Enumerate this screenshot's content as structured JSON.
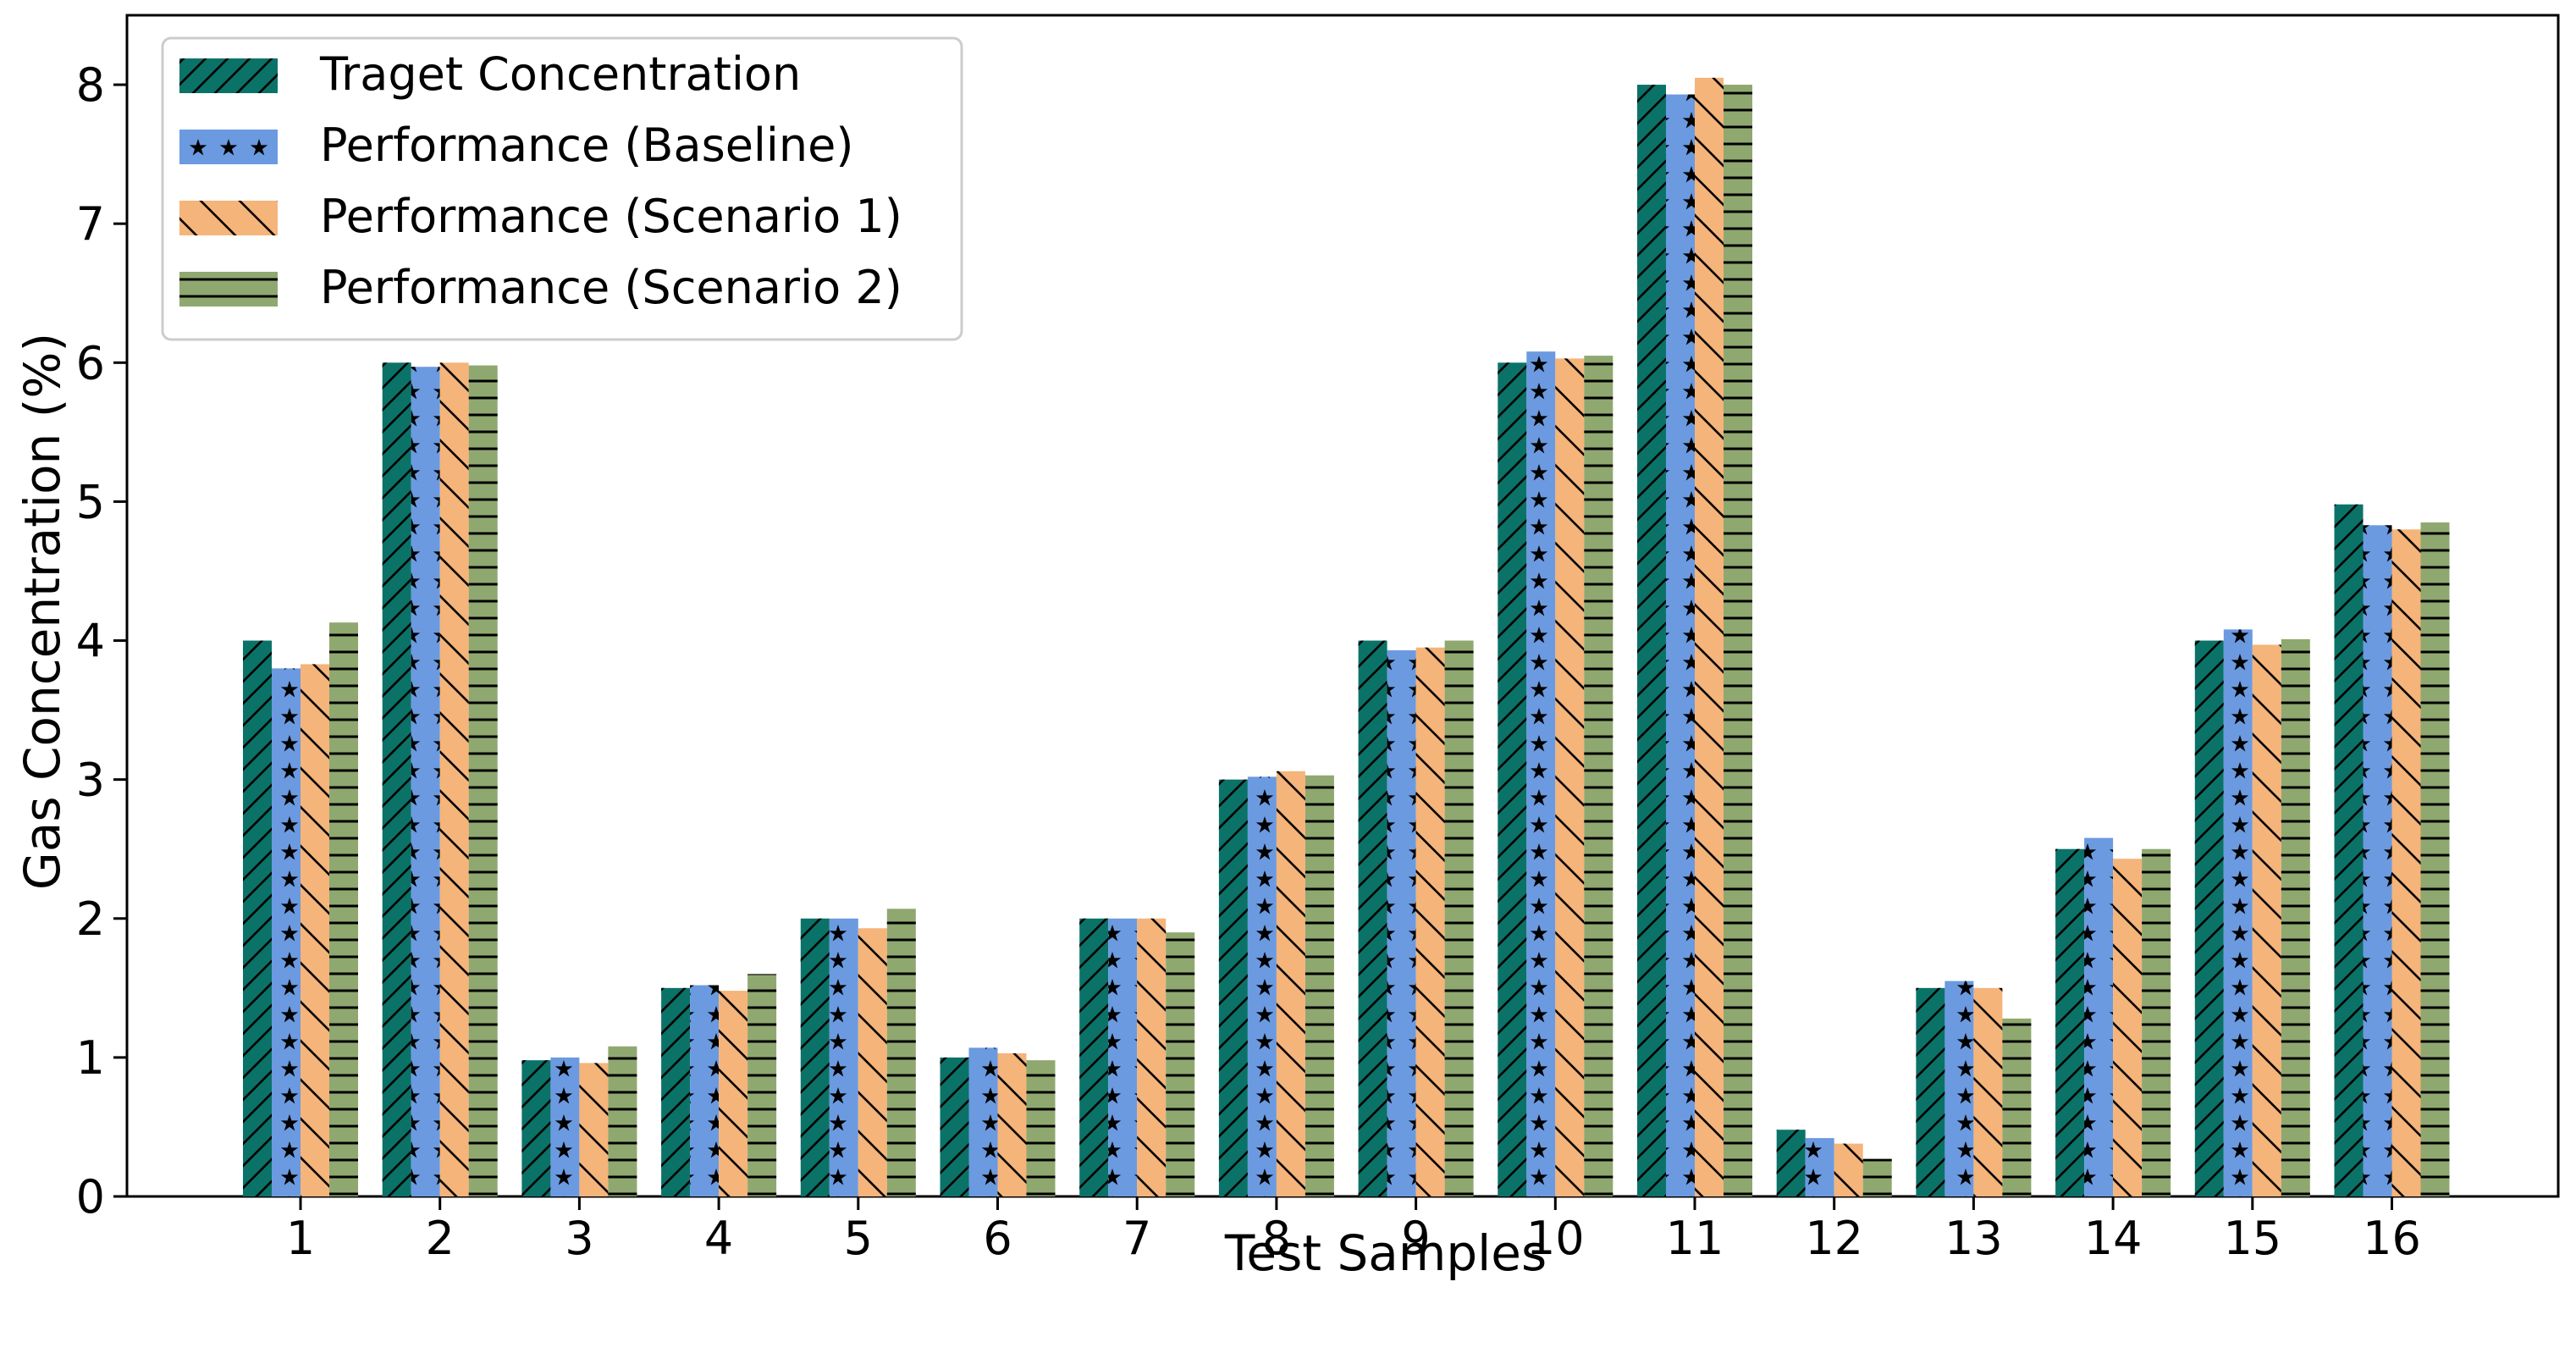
{
  "chart_data": {
    "type": "bar",
    "title": "",
    "xlabel": "Test Samples",
    "ylabel": "Gas Concentration (%)",
    "ylim": [
      0,
      8.5
    ],
    "yticks": [
      0,
      1,
      2,
      3,
      4,
      5,
      6,
      7,
      8
    ],
    "grid": false,
    "legend_position": "top-left",
    "categories": [
      "1",
      "2",
      "3",
      "4",
      "5",
      "6",
      "7",
      "8",
      "9",
      "10",
      "11",
      "12",
      "13",
      "14",
      "15",
      "16"
    ],
    "series": [
      {
        "name": "Traget Concentration",
        "color": "#0b7268",
        "pattern": "forward-slash",
        "values": [
          4.0,
          6.0,
          0.98,
          1.5,
          2.0,
          1.0,
          2.0,
          3.0,
          4.0,
          6.0,
          8.0,
          0.48,
          1.5,
          2.5,
          4.0,
          4.98
        ]
      },
      {
        "name": "Performance (Baseline)",
        "color": "#6b9ae0",
        "pattern": "stars",
        "values": [
          3.8,
          5.97,
          1.0,
          1.52,
          2.0,
          1.07,
          2.0,
          3.02,
          3.93,
          6.08,
          7.93,
          0.42,
          1.55,
          2.58,
          4.08,
          4.83
        ]
      },
      {
        "name": "Performance (Scenario 1)",
        "color": "#f5b47a",
        "pattern": "back-slash",
        "values": [
          3.83,
          6.0,
          0.96,
          1.48,
          1.93,
          1.03,
          2.0,
          3.06,
          3.95,
          6.03,
          8.05,
          0.38,
          1.5,
          2.43,
          3.97,
          4.8
        ]
      },
      {
        "name": "Performance (Scenario 2)",
        "color": "#8fa870",
        "pattern": "horizontal",
        "values": [
          4.13,
          5.98,
          1.08,
          1.6,
          2.07,
          0.98,
          1.9,
          3.03,
          4.0,
          6.05,
          8.0,
          0.27,
          1.28,
          2.5,
          4.01,
          4.85
        ]
      }
    ]
  }
}
